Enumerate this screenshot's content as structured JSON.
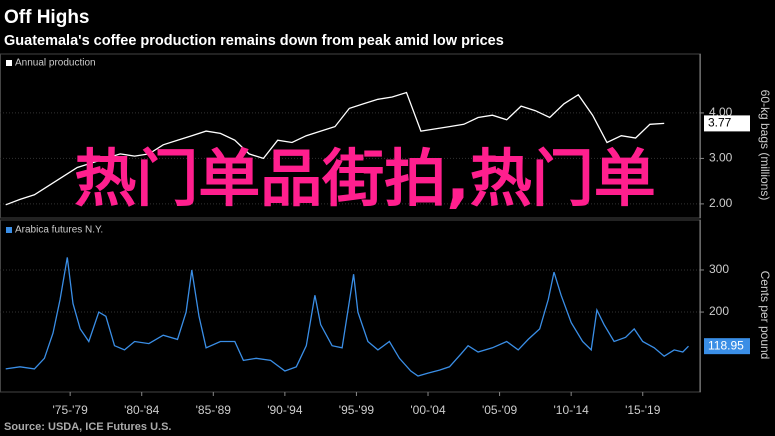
{
  "title": "Off Highs",
  "subtitle": "Guatemala's coffee production remains down from peak amid low prices",
  "source": "Source: USDA, ICE Futures U.S.",
  "watermark": "热门单品街拍,热门单",
  "chart_data": [
    {
      "type": "line",
      "ylabel": "60-kg bags (millions)",
      "xlim": [
        1972.6,
        2021.5
      ],
      "ylim": [
        1.69,
        4.9
      ],
      "yticks": [
        {
          "value": 2,
          "label": "2.00"
        },
        {
          "value": 3,
          "label": "3.00"
        },
        {
          "value": 4,
          "label": "4.00"
        }
      ],
      "grid": true,
      "x": [
        1973,
        1974,
        1975,
        1976,
        1977,
        1978,
        1979,
        1980,
        1981,
        1982,
        1983,
        1984,
        1985,
        1986,
        1987,
        1988,
        1989,
        1990,
        1991,
        1992,
        1993,
        1994,
        1995,
        1996,
        1997,
        1998,
        1999,
        2000,
        2001,
        2002,
        2003,
        2004,
        2005,
        2006,
        2007,
        2008,
        2009,
        2010,
        2011,
        2012,
        2013,
        2014,
        2015,
        2016,
        2017,
        2018,
        2019
      ],
      "series": [
        {
          "name": "Annual production",
          "color": "#ffffff",
          "values": [
            1.98,
            2.1,
            2.2,
            2.4,
            2.6,
            2.8,
            2.9,
            3.0,
            3.1,
            3.05,
            3.1,
            3.3,
            3.4,
            3.5,
            3.6,
            3.55,
            3.4,
            3.1,
            3.0,
            3.4,
            3.35,
            3.5,
            3.6,
            3.7,
            4.1,
            4.2,
            4.3,
            4.35,
            4.45,
            3.6,
            3.65,
            3.7,
            3.75,
            3.9,
            3.95,
            3.85,
            4.15,
            4.05,
            3.9,
            4.2,
            4.4,
            3.95,
            3.35,
            3.5,
            3.45,
            3.75,
            3.77
          ]
        }
      ]
    },
    {
      "type": "line",
      "ylabel": "Cents per pound",
      "xlim": [
        1972.6,
        2021.5
      ],
      "ylim": [
        10,
        376
      ],
      "yticks": [
        200,
        300
      ],
      "grid": true,
      "xticks": [
        {
          "value": 1977.5,
          "label": "'75-'79"
        },
        {
          "value": 1982.5,
          "label": "'80-'84"
        },
        {
          "value": 1987.5,
          "label": "'85-'89"
        },
        {
          "value": 1992.5,
          "label": "'90-'94"
        },
        {
          "value": 1997.5,
          "label": "'95-'99"
        },
        {
          "value": 2002.5,
          "label": "'00-'04"
        },
        {
          "value": 2007.5,
          "label": "'05-'09"
        },
        {
          "value": 2012.5,
          "label": "'10-'14"
        },
        {
          "value": 2017.5,
          "label": "'15-'19"
        }
      ],
      "x": [
        1973,
        1974,
        1975,
        1975.7,
        1976.3,
        1976.8,
        1977.3,
        1977.7,
        1978.2,
        1978.8,
        1979.5,
        1980,
        1980.6,
        1981.3,
        1982,
        1983,
        1984,
        1985,
        1985.6,
        1986,
        1986.5,
        1987,
        1988,
        1989,
        1989.6,
        1990.5,
        1991.5,
        1992.5,
        1993.3,
        1994,
        1994.6,
        1995,
        1995.8,
        1996.5,
        1997.3,
        1997.6,
        1998.3,
        1999,
        1999.8,
        2000.5,
        2001.3,
        2001.8,
        2002.5,
        2003.3,
        2004,
        2004.8,
        2005.3,
        2006,
        2007,
        2008,
        2008.8,
        2009.5,
        2010.3,
        2010.9,
        2011.3,
        2011.8,
        2012.5,
        2013.3,
        2013.9,
        2014.3,
        2014.8,
        2015.5,
        2016.3,
        2016.9,
        2017.5,
        2018.3,
        2019,
        2019.7,
        2020.3,
        2020.7
      ],
      "series": [
        {
          "name": "Arabica futures N.Y.",
          "color": "#3a8ee6",
          "values": [
            65,
            70,
            65,
            90,
            150,
            230,
            330,
            220,
            160,
            130,
            200,
            190,
            120,
            110,
            130,
            125,
            145,
            135,
            200,
            300,
            190,
            115,
            130,
            130,
            85,
            90,
            85,
            60,
            70,
            120,
            240,
            170,
            120,
            115,
            290,
            200,
            130,
            110,
            130,
            90,
            60,
            48,
            55,
            62,
            70,
            100,
            120,
            105,
            115,
            130,
            110,
            135,
            160,
            230,
            295,
            240,
            175,
            130,
            110,
            205,
            170,
            130,
            140,
            160,
            130,
            115,
            95,
            110,
            105,
            118.95
          ]
        }
      ]
    }
  ]
}
